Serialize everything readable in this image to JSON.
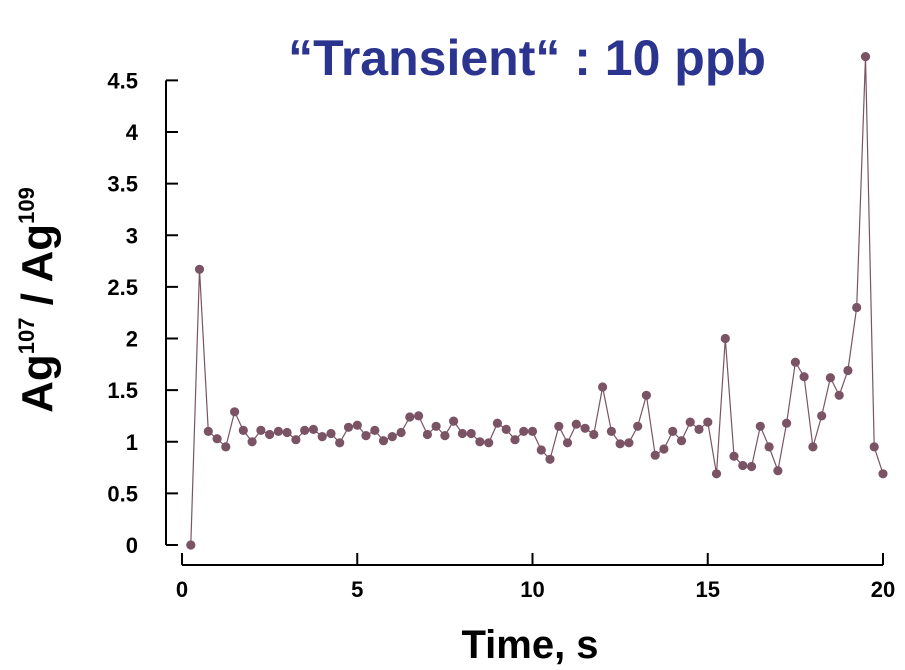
{
  "chart_data": {
    "type": "line",
    "title": "“Transient“ : 10 ppb",
    "xlabel": "Time, s",
    "ylabel": {
      "parts": [
        {
          "text": "Ag",
          "sup": false
        },
        {
          "text": "107",
          "sup": true
        },
        {
          "text": " / Ag",
          "sup": false
        },
        {
          "text": "109",
          "sup": true
        }
      ]
    },
    "xlim": [
      0,
      20
    ],
    "ylim": [
      0,
      4
    ],
    "xticks": [
      {
        "value": 0,
        "label": "0"
      },
      {
        "value": 5,
        "label": "5"
      },
      {
        "value": 10,
        "label": "10"
      },
      {
        "value": 15,
        "label": "15"
      },
      {
        "value": 20,
        "label": "20"
      }
    ],
    "yticks": [
      {
        "value": 0,
        "label": "0"
      },
      {
        "value": 0.5,
        "label": "0.5"
      },
      {
        "value": 1,
        "label": "1"
      },
      {
        "value": 1.5,
        "label": "1.5"
      },
      {
        "value": 2,
        "label": "2"
      },
      {
        "value": 2.5,
        "label": "2.5"
      },
      {
        "value": 3,
        "label": "3"
      },
      {
        "value": 3.5,
        "label": "3.5"
      },
      {
        "value": 4,
        "label": "4"
      },
      {
        "value": 4.5,
        "label": "4.5"
      }
    ],
    "grid": false,
    "colors": {
      "series": "#7a5465",
      "title": "#2b3590",
      "axis": "#000000"
    },
    "series": [
      {
        "x": [
          0.25,
          0.5,
          0.75,
          1.0,
          1.25,
          1.5,
          1.75,
          2.0,
          2.25,
          2.5,
          2.75,
          3.0,
          3.25,
          3.5,
          3.75,
          4.0,
          4.25,
          4.5,
          4.75,
          5.0,
          5.25,
          5.5,
          5.75,
          6.0,
          6.25,
          6.5,
          6.75,
          7.0,
          7.25,
          7.5,
          7.75,
          8.0,
          8.25,
          8.5,
          8.75,
          9.0,
          9.25,
          9.5,
          9.75,
          10.0,
          10.25,
          10.5,
          10.75,
          11.0,
          11.25,
          11.5,
          11.75,
          12.0,
          12.25,
          12.5,
          12.75,
          13.0,
          13.25,
          13.5,
          13.75,
          14.0,
          14.25,
          14.5,
          14.75,
          15.0,
          15.25,
          15.5,
          15.75,
          16.0,
          16.25,
          16.5,
          16.75,
          17.0,
          17.25,
          17.5,
          17.75,
          18.0,
          18.25,
          18.5,
          18.75,
          19.0,
          19.25,
          19.5,
          19.75,
          20.0
        ],
        "values": [
          0.0,
          2.67,
          1.1,
          1.03,
          0.95,
          1.29,
          1.11,
          1.0,
          1.11,
          1.07,
          1.1,
          1.09,
          1.02,
          1.11,
          1.12,
          1.05,
          1.08,
          0.99,
          1.14,
          1.16,
          1.06,
          1.11,
          1.01,
          1.05,
          1.09,
          1.24,
          1.25,
          1.07,
          1.15,
          1.06,
          1.2,
          1.08,
          1.08,
          1.0,
          0.99,
          1.18,
          1.12,
          1.02,
          1.1,
          1.1,
          0.92,
          0.83,
          1.15,
          0.99,
          1.17,
          1.13,
          1.07,
          1.53,
          1.1,
          0.98,
          0.99,
          1.15,
          1.45,
          0.87,
          0.93,
          1.1,
          1.01,
          1.19,
          1.12,
          1.19,
          0.69,
          2.0,
          0.86,
          0.77,
          0.76,
          1.15,
          0.95,
          0.72,
          1.18,
          1.77,
          1.63,
          0.95,
          1.25,
          1.62,
          1.45,
          1.69,
          2.3,
          4.73,
          0.95,
          0.69
        ]
      }
    ]
  }
}
